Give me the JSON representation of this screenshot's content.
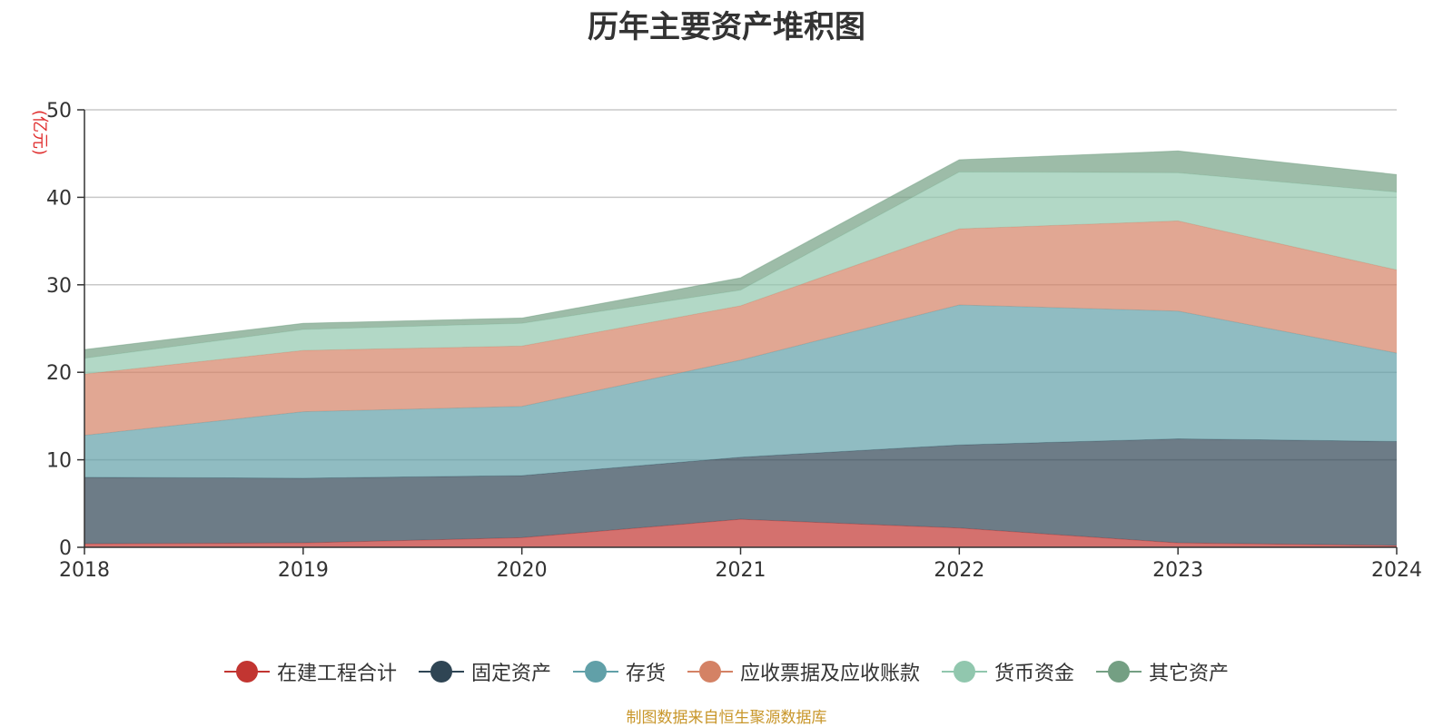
{
  "chart_data": {
    "type": "area",
    "stacked": true,
    "title": "历年主要资产堆积图",
    "ylabel": "(亿元)",
    "x": [
      "2018",
      "2019",
      "2020",
      "2021",
      "2022",
      "2023",
      "2024"
    ],
    "ylim": [
      0,
      50
    ],
    "yticks": [
      0,
      10,
      20,
      30,
      40,
      50
    ],
    "grid": true,
    "legend_position": "bottom",
    "series": [
      {
        "name": "在建工程合计",
        "color": "#c23531",
        "values": [
          0.4,
          0.5,
          1.1,
          3.2,
          2.2,
          0.5,
          0.2
        ]
      },
      {
        "name": "固定资产",
        "color": "#2f4554",
        "values": [
          7.6,
          7.4,
          7.1,
          7.1,
          9.5,
          11.9,
          11.9
        ]
      },
      {
        "name": "存货",
        "color": "#61a0a8",
        "values": [
          4.8,
          7.6,
          7.9,
          11.1,
          16.0,
          14.6,
          10.1
        ]
      },
      {
        "name": "应收票据及应收账款",
        "color": "#d48265",
        "values": [
          7.0,
          7.0,
          6.9,
          6.2,
          8.7,
          10.3,
          9.5
        ]
      },
      {
        "name": "货币资金",
        "color": "#91c7ae",
        "values": [
          1.8,
          2.4,
          2.6,
          1.8,
          6.5,
          5.5,
          8.9
        ]
      },
      {
        "name": "其它资产",
        "color": "#749f83",
        "values": [
          1.0,
          0.7,
          0.6,
          1.4,
          1.4,
          2.5,
          2.0
        ]
      }
    ]
  },
  "source_note": "制图数据来自恒生聚源数据库"
}
